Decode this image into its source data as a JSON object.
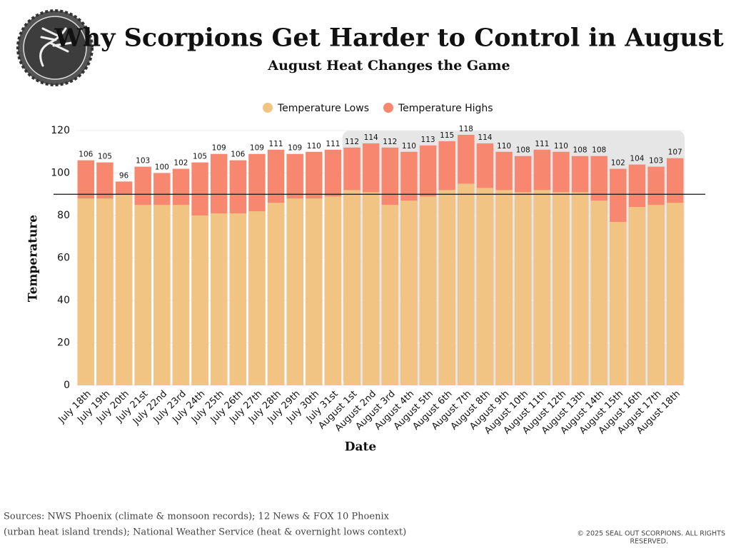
{
  "chart_data": {
    "type": "overlap_bar",
    "title": "Why Scorpions Get Harder to Control in August",
    "subtitle": "August Heat Changes the Game",
    "x_label": "Date",
    "y_label": "Temperature",
    "categories": [
      "July 18th",
      "July 19th",
      "July 20th",
      "July 21st",
      "July 22nd",
      "July 23rd",
      "July 24th",
      "July 25th",
      "July 26th",
      "July 27th",
      "July 28th",
      "July 29th",
      "July 30th",
      "July 31st",
      "August 1st",
      "August 2nd",
      "August 3rd",
      "August 4th",
      "August 5th",
      "August 6th",
      "August 7th",
      "August 8th",
      "August 9th",
      "August 10th",
      "August 11th",
      "August 12th",
      "August 13th",
      "August 14th",
      "August 15th",
      "August 16th",
      "August 17th",
      "August 18th"
    ],
    "series": [
      {
        "name": "Temperature Lows",
        "color": "#f1c483",
        "values": [
          88,
          88,
          90,
          85,
          85,
          85,
          80,
          81,
          81,
          82,
          86,
          88,
          88,
          89,
          92,
          91,
          85,
          87,
          89,
          92,
          95,
          93,
          92,
          91,
          92,
          91,
          91,
          87,
          77,
          84,
          85,
          86
        ]
      },
      {
        "name": "Temperature Highs",
        "color": "#f7876f",
        "values": [
          106,
          105,
          96,
          103,
          100,
          102,
          105,
          109,
          106,
          109,
          111,
          109,
          110,
          111,
          112,
          114,
          112,
          110,
          113,
          115,
          118,
          114,
          110,
          108,
          111,
          110,
          108,
          108,
          102,
          104,
          103,
          107
        ],
        "labeled": true
      }
    ],
    "ylim": [
      0,
      120
    ],
    "yticks": [
      0,
      20,
      40,
      60,
      80,
      100,
      120
    ],
    "grid": true,
    "hline": 90,
    "highlight": [
      "August 1st",
      "August 18th"
    ],
    "legend": "top",
    "sources": [
      "Sources: NWS Phoenix (climate & monsoon records); 12 News & FOX 10 Phoenix",
      "(urban heat island trends); National Weather Service (heat & overnight lows context)"
    ],
    "copyright": [
      "© 2025 SEAL OUT SCORPIONS. ALL RIGHTS",
      "RESERVED."
    ]
  }
}
